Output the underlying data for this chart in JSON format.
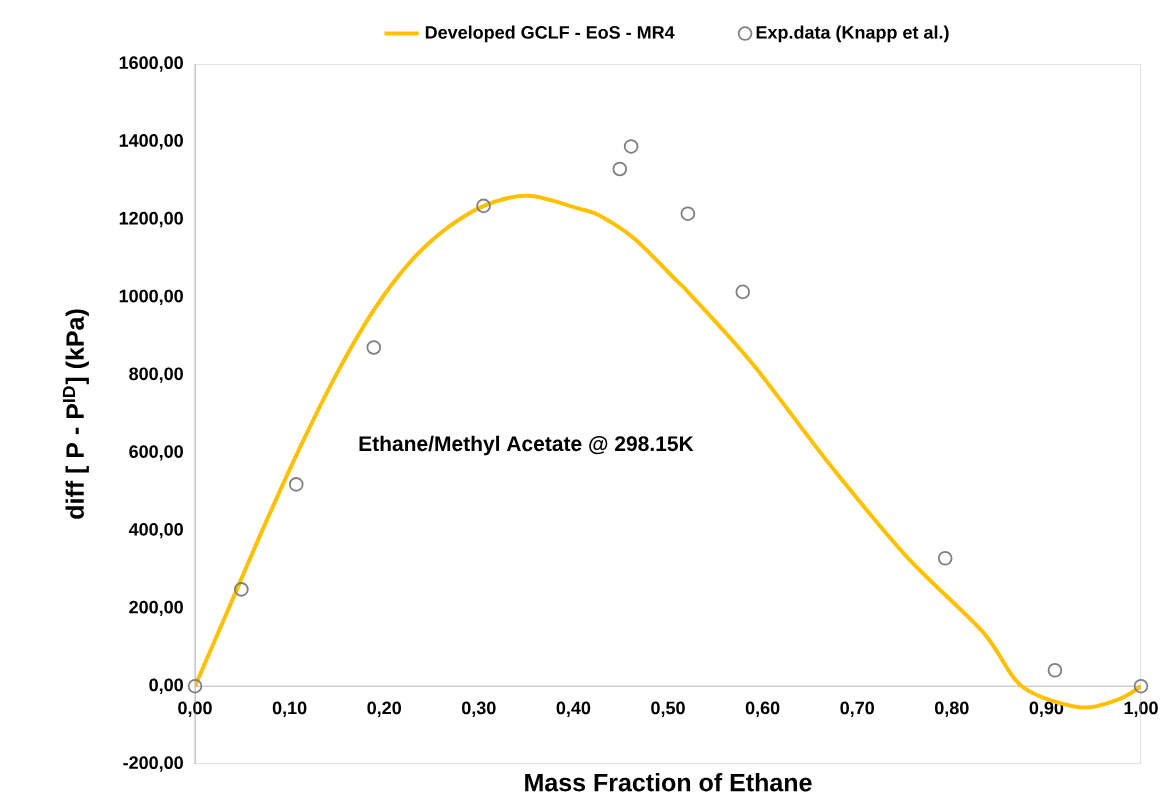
{
  "chart_data": {
    "type": "scatter",
    "xlabel": "Mass Fraction of Ethane",
    "ylabel": "diff [ P - P$^{ID}$] (kPa)",
    "annotations": [
      "Ethane/Methyl Acetate @ 298.15K"
    ],
    "xlim": [
      0,
      1
    ],
    "ylim": [
      -200,
      1600
    ],
    "xticks": [
      {
        "value": 0,
        "label": "0,00"
      },
      {
        "value": 0.1,
        "label": "0,10"
      },
      {
        "value": 0.2,
        "label": "0,20"
      },
      {
        "value": 0.3,
        "label": "0,30"
      },
      {
        "value": 0.4,
        "label": "0,40"
      },
      {
        "value": 0.5,
        "label": "0,50"
      },
      {
        "value": 0.6,
        "label": "0,60"
      },
      {
        "value": 0.7,
        "label": "0,70"
      },
      {
        "value": 0.8,
        "label": "0,80"
      },
      {
        "value": 0.9,
        "label": "0,90"
      },
      {
        "value": 1,
        "label": "1,00"
      }
    ],
    "yticks": [
      {
        "value": -200,
        "label": "-200,00"
      },
      {
        "value": 0,
        "label": "0,00"
      },
      {
        "value": 200,
        "label": "200,00"
      },
      {
        "value": 400,
        "label": "400,00"
      },
      {
        "value": 600,
        "label": "600,00"
      },
      {
        "value": 800,
        "label": "800,00"
      },
      {
        "value": 1000,
        "label": "1000,00"
      },
      {
        "value": 1200,
        "label": "1200,00"
      },
      {
        "value": 1400,
        "label": "1400,00"
      },
      {
        "value": 1600,
        "label": "1600,00"
      }
    ],
    "grid": false,
    "legend": "top",
    "series": [
      {
        "name": "Developed GCLF - EoS - MR4",
        "type": "line",
        "color": "#ffc000",
        "marker": "none",
        "x": [
          0,
          0.034,
          0.073,
          0.112,
          0.151,
          0.19,
          0.229,
          0.268,
          0.308,
          0.353,
          0.406,
          0.428,
          0.464,
          0.509,
          0.523,
          0.59,
          0.671,
          0.752,
          0.833,
          0.874,
          0.934,
          0.975,
          1.0
        ],
        "values": [
          0,
          191,
          411,
          619,
          809,
          971,
          1095,
          1181,
          1238,
          1261,
          1228,
          1210,
          1152,
          1043,
          1009,
          827,
          570,
          334,
          139,
          0,
          -54,
          -35,
          0
        ]
      },
      {
        "name": "Exp.data (Knapp et al.)",
        "color": "#7f7f7f",
        "marker": "circle",
        "x": [
          0,
          0.049,
          0.107,
          0.189,
          0.305,
          0.449,
          0.461,
          0.521,
          0.579,
          0.793,
          0.909,
          1.0
        ],
        "values": [
          0,
          249,
          519,
          871,
          1235,
          1330,
          1388,
          1215,
          1014,
          329,
          41,
          0
        ]
      }
    ]
  }
}
